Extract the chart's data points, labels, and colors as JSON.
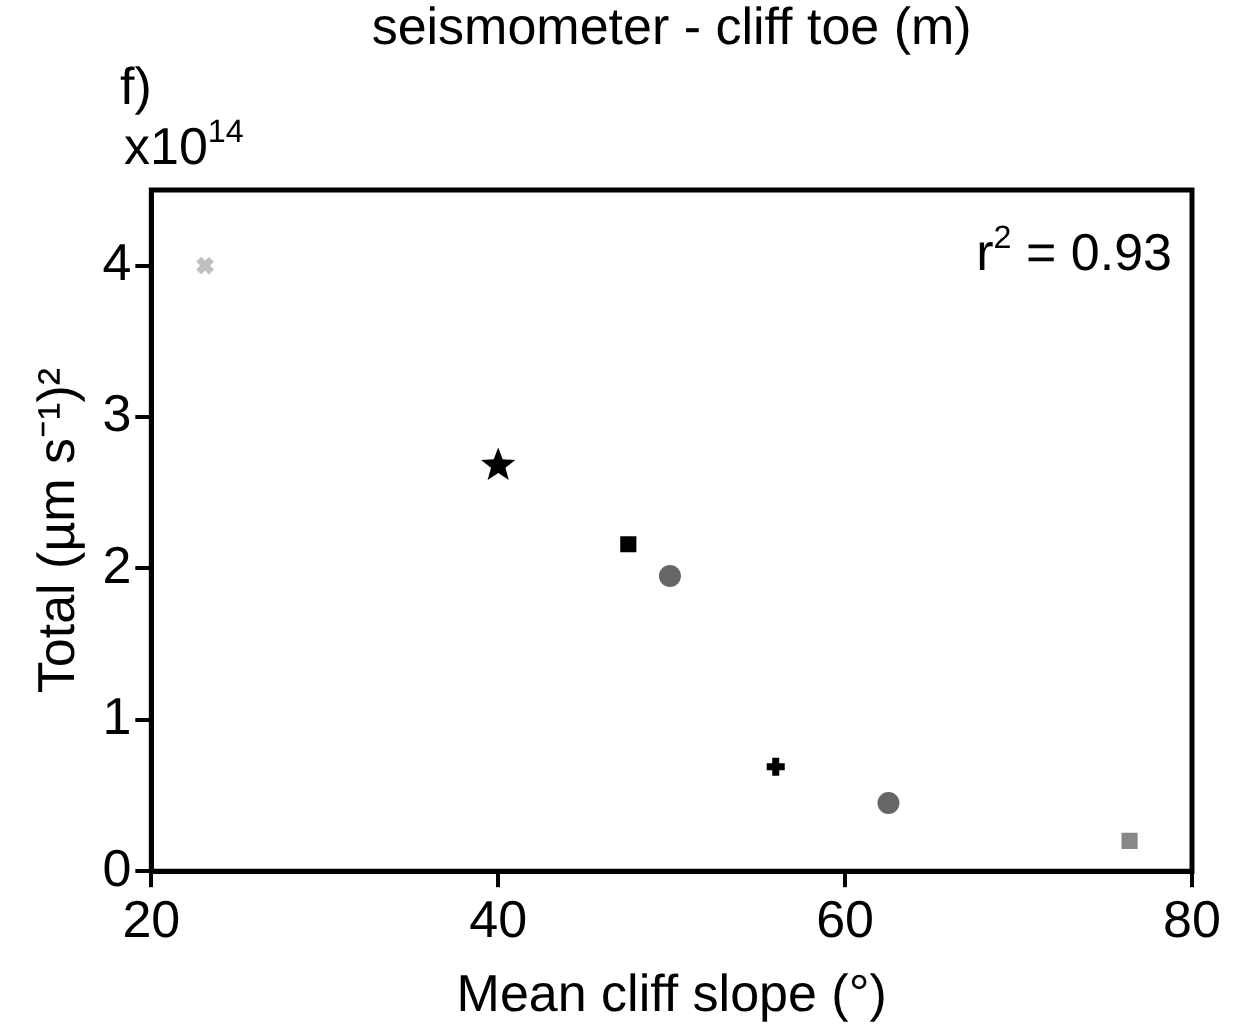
{
  "chart_data": {
    "type": "scatter",
    "title": "seismometer - cliff toe (m)",
    "xlabel": "Mean cliff slope (°)",
    "ylabel": "Total (µm s⁻¹)²",
    "annotations": [
      "f)",
      "x10$^{14}$",
      "r$^{2}$ = 0.93"
    ],
    "xlim": [
      20,
      80
    ],
    "xticks": [
      20,
      40,
      60,
      80
    ],
    "ylim": [
      0,
      4.5
    ],
    "yticks": [
      0,
      1,
      2,
      3,
      4
    ],
    "grid": false,
    "legend": false,
    "series": [
      {
        "color": "#c0c0c0",
        "marker": "cross",
        "x": [
          23.1
        ],
        "values": [
          4.0
        ]
      },
      {
        "color": "#000000",
        "marker": "star",
        "x": [
          40
        ],
        "values": [
          2.68
        ]
      },
      {
        "color": "#000000",
        "marker": "square",
        "x": [
          47.5
        ],
        "values": [
          2.16
        ]
      },
      {
        "color": "#666666",
        "marker": "circle",
        "x": [
          49.9
        ],
        "values": [
          1.95
        ]
      },
      {
        "color": "#000000",
        "marker": "plus",
        "x": [
          56
        ],
        "values": [
          0.69
        ]
      },
      {
        "color": "#666666",
        "marker": "circle",
        "x": [
          62.5
        ],
        "values": [
          0.45
        ]
      },
      {
        "color": "#888888",
        "marker": "square",
        "x": [
          76.4
        ],
        "values": [
          0.2
        ]
      }
    ]
  }
}
